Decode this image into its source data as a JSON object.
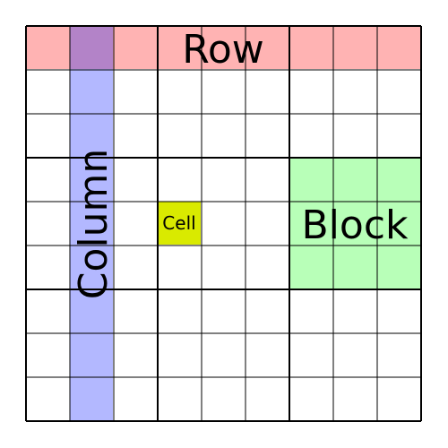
{
  "grid": {
    "rows": 9,
    "cols": 9,
    "box": 3
  },
  "labels": {
    "row": "Row",
    "column": "Column",
    "cell": "Cell",
    "block": "Block"
  },
  "colors": {
    "row": "#ffb3b3",
    "column": "#b3b8ff",
    "overlap": "#b383c8",
    "cell": "#d9ea00",
    "block": "#b8ffb8",
    "grid_line": "#000000",
    "background": "#ffffff"
  },
  "highlights": {
    "row_index": 0,
    "column_index": 1,
    "cell": {
      "row": 4,
      "col": 3
    },
    "block": {
      "row": 1,
      "col": 2
    }
  }
}
